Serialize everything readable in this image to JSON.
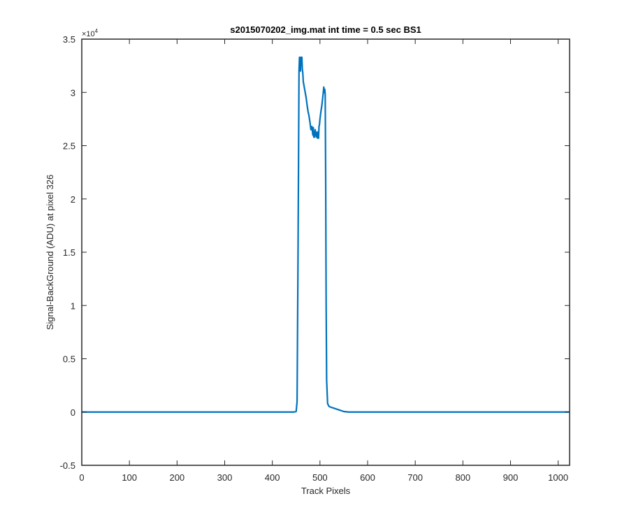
{
  "chart_data": {
    "type": "line",
    "title": "s2015070202_img.mat int time = 0.5 sec   BS1",
    "xlabel": "Track Pixels",
    "ylabel": "Signal-BackGround (ADU) at pixel 326",
    "y_exponent_label": "×10",
    "y_exponent_power": "4",
    "xlim": [
      0,
      1024
    ],
    "ylim": [
      -0.5,
      3.5
    ],
    "y_scale_factor": 10000,
    "x_ticks": [
      "0",
      "100",
      "200",
      "300",
      "400",
      "500",
      "600",
      "700",
      "800",
      "900",
      "1000"
    ],
    "y_ticks": [
      "-0.5",
      "0",
      "0.5",
      "1",
      "1.5",
      "2",
      "2.5",
      "3",
      "3.5"
    ],
    "grid": false,
    "line_color": "#0072BD",
    "series": [
      {
        "x": [
          0,
          100,
          200,
          300,
          400,
          445,
          450,
          452,
          454,
          456,
          457,
          459,
          460,
          461,
          462,
          463,
          464,
          465,
          467,
          469,
          471,
          473,
          475,
          477,
          479,
          481,
          483,
          485,
          486,
          487,
          488,
          489,
          490,
          491,
          492,
          493,
          494,
          495,
          496,
          497,
          498,
          499,
          500,
          502,
          504,
          506,
          507,
          508,
          509,
          510,
          511,
          512,
          513,
          514,
          516,
          518,
          520,
          530,
          540,
          550,
          560,
          600,
          700,
          800,
          900,
          1024
        ],
        "y": [
          0,
          0,
          0,
          0,
          0,
          0,
          0.005,
          0.1,
          1.5,
          3.2,
          3.33,
          3.2,
          3.33,
          3.3,
          3.33,
          3.22,
          3.18,
          3.1,
          3.05,
          3.0,
          2.95,
          2.88,
          2.82,
          2.78,
          2.72,
          2.65,
          2.68,
          2.6,
          2.67,
          2.58,
          2.63,
          2.58,
          2.65,
          2.6,
          2.62,
          2.58,
          2.63,
          2.57,
          2.62,
          2.57,
          2.68,
          2.7,
          2.75,
          2.82,
          2.88,
          2.96,
          3.0,
          3.05,
          3.0,
          3.03,
          2.98,
          2.2,
          1.0,
          0.3,
          0.08,
          0.06,
          0.05,
          0.035,
          0.02,
          0.005,
          0,
          0,
          0,
          0,
          0,
          0
        ]
      }
    ]
  }
}
